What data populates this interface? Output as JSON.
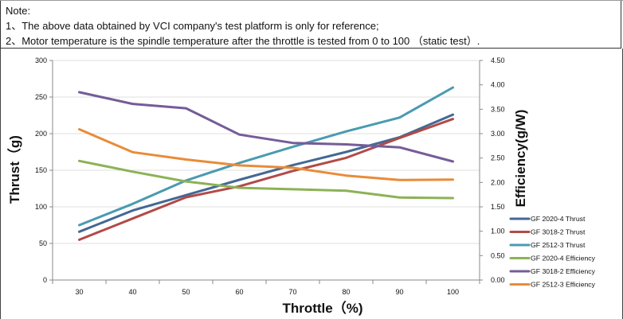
{
  "note": {
    "title": "Note:",
    "line1": "1、The above data obtained by VCI company's test platform is only for reference;",
    "line2": "2、Motor temperature is the spindle temperature after the throttle is tested from 0 to 100  （static test）."
  },
  "chart_data": {
    "type": "line",
    "title": "",
    "xlabel": "Throttle（%)",
    "ylabel": "Thrust（g)",
    "y2label": "Efficiency(g/W)",
    "x": [
      30,
      40,
      50,
      60,
      70,
      80,
      90,
      100
    ],
    "x_tick_labels": [
      "30",
      "40",
      "50",
      "60",
      "70",
      "80",
      "90",
      "100"
    ],
    "ylim": [
      0,
      300
    ],
    "y2lim": [
      0,
      4.5
    ],
    "y_ticks": [
      0,
      50,
      100,
      150,
      200,
      250,
      300
    ],
    "y_tick_labels": [
      "0",
      "50",
      "100",
      "150",
      "200",
      "250",
      "300"
    ],
    "y2_ticks": [
      0,
      0.5,
      1,
      1.5,
      2,
      2.5,
      3,
      3.5,
      4,
      4.5
    ],
    "y2_tick_labels": [
      "0.00",
      "0.50",
      "1.00",
      "1.50",
      "2.00",
      "2.50",
      "3.00",
      "3.50",
      "4.00",
      "4.50"
    ],
    "grid": "horizontal",
    "legend_position": "right",
    "series": [
      {
        "name": "GF 2020-4 Thrust",
        "axis": "left",
        "color": "#436894",
        "values": [
          66,
          95,
          116,
          137,
          157,
          175,
          195,
          226
        ]
      },
      {
        "name": "GF 3018-2 Thrust",
        "axis": "left",
        "color": "#b24a47",
        "values": [
          55,
          84,
          113,
          128,
          149,
          167,
          194,
          220
        ]
      },
      {
        "name": "GF 2512-3 Thrust",
        "axis": "left",
        "color": "#4a9bb0",
        "values": [
          75,
          104,
          136,
          160,
          182,
          203,
          222,
          263
        ]
      },
      {
        "name": "GF 2020-4 Efficiency",
        "axis": "right",
        "color": "#8cb255",
        "values": [
          2.44,
          2.22,
          2.02,
          1.89,
          1.86,
          1.83,
          1.69,
          1.68
        ]
      },
      {
        "name": "GF 3018-2 Efficiency",
        "axis": "right",
        "color": "#755c98",
        "values": [
          3.85,
          3.61,
          3.52,
          2.98,
          2.81,
          2.78,
          2.72,
          2.43
        ]
      },
      {
        "name": "GF 2512-3 Efficiency",
        "axis": "right",
        "color": "#e98b39",
        "values": [
          3.09,
          2.62,
          2.47,
          2.35,
          2.3,
          2.14,
          2.05,
          2.06
        ]
      }
    ]
  }
}
